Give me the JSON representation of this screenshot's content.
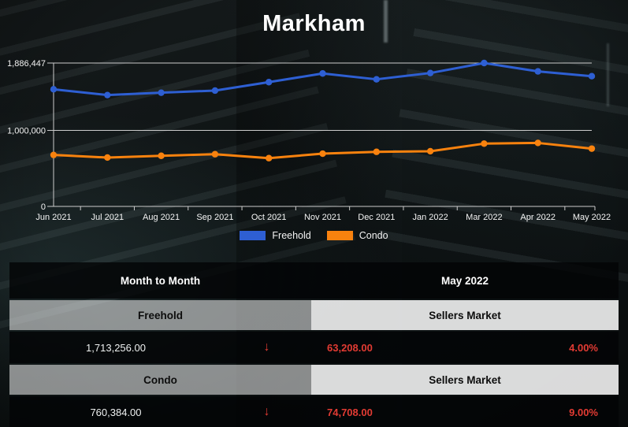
{
  "page": {
    "title": "Markham"
  },
  "colors": {
    "freehold_blue": "#2e5fd3",
    "condo_orange": "#f8820e",
    "alert_red": "#e23b33",
    "axis_line": "#cccccc",
    "axis_text": "#f4f4f4"
  },
  "chart_data": {
    "type": "line",
    "title": "Markham",
    "categories": [
      "Jun 2021",
      "Jul 2021",
      "Aug 2021",
      "Sep 2021",
      "Oct 2021",
      "Nov 2021",
      "Dec 2021",
      "Jan 2022",
      "Mar 2022",
      "Apr 2022",
      "May 2022"
    ],
    "series": [
      {
        "name": "Freehold",
        "color": "#2e5fd3",
        "values": [
          1541000,
          1465000,
          1496000,
          1524000,
          1635000,
          1749000,
          1672000,
          1755000,
          1886447,
          1776464,
          1713256
        ]
      },
      {
        "name": "Condo",
        "color": "#f8820e",
        "values": [
          677000,
          643000,
          666000,
          687000,
          635000,
          694000,
          718000,
          726000,
          826000,
          835092,
          760384
        ]
      }
    ],
    "ylim": [
      0,
      1886447
    ],
    "yticks": [
      {
        "v": 0,
        "label": "0"
      },
      {
        "v": 1000000,
        "label": "1,000,000"
      },
      {
        "v": 1886447,
        "label": "1,886,447"
      }
    ],
    "grid": true,
    "legend_position": "bottom"
  },
  "table": {
    "header_left": "Month to Month",
    "header_right": "May 2022",
    "sections": [
      {
        "name": "Freehold",
        "market": "Sellers Market",
        "value": "1,713,256.00",
        "arrow": "↓",
        "change": "63,208.00",
        "percent": "4.00%"
      },
      {
        "name": "Condo",
        "market": "Sellers Market",
        "value": "760,384.00",
        "arrow": "↓",
        "change": "74,708.00",
        "percent": "9.00%"
      }
    ]
  }
}
